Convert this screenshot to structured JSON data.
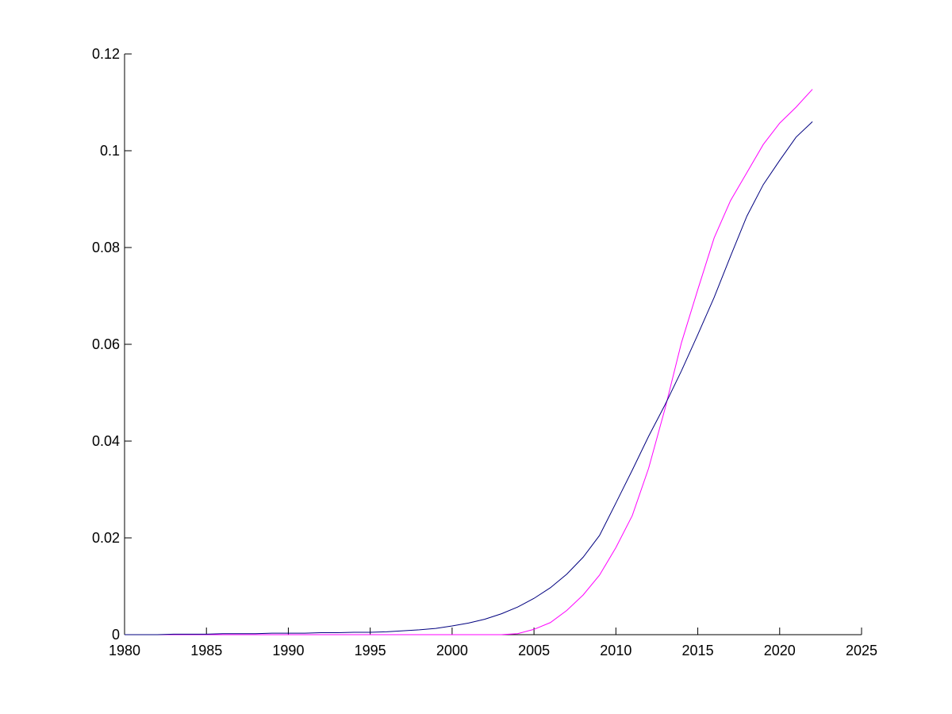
{
  "chart_data": {
    "type": "line",
    "x": [
      1980,
      1981,
      1982,
      1983,
      1984,
      1985,
      1986,
      1987,
      1988,
      1989,
      1990,
      1991,
      1992,
      1993,
      1994,
      1995,
      1996,
      1997,
      1998,
      1999,
      2000,
      2001,
      2002,
      2003,
      2004,
      2005,
      2006,
      2007,
      2008,
      2009,
      2010,
      2011,
      2012,
      2013,
      2014,
      2015,
      2016,
      2017,
      2018,
      2019,
      2020,
      2021,
      2022
    ],
    "series": [
      {
        "color": "#00007f",
        "values": [
          0,
          0,
          0,
          0.0001,
          0.0001,
          0.0001,
          0.0002,
          0.0002,
          0.0002,
          0.0003,
          0.0003,
          0.0003,
          0.0004,
          0.0004,
          0.0005,
          0.0005,
          0.0006,
          0.0008,
          0.001,
          0.0013,
          0.0018,
          0.0024,
          0.0032,
          0.0043,
          0.0057,
          0.0075,
          0.0097,
          0.0125,
          0.016,
          0.0205,
          0.0272,
          0.034,
          0.041,
          0.0475,
          0.0545,
          0.062,
          0.0697,
          0.0782,
          0.0865,
          0.093,
          0.098,
          0.1028,
          0.106
        ]
      },
      {
        "color": "#ff00ff",
        "values": [
          0,
          0,
          0,
          0,
          0,
          0,
          0,
          0,
          0,
          0,
          0,
          0,
          0,
          0,
          0,
          0,
          0,
          0,
          0,
          0,
          0,
          0,
          0,
          0,
          0.0002,
          0.0011,
          0.0025,
          0.005,
          0.0082,
          0.0123,
          0.018,
          0.0246,
          0.0344,
          0.0467,
          0.0603,
          0.0713,
          0.082,
          0.0897,
          0.0955,
          0.1013,
          0.1057,
          0.109,
          0.1127
        ]
      }
    ],
    "xlim": [
      1980,
      2025
    ],
    "xticks": [
      1980,
      1985,
      1990,
      1995,
      2000,
      2005,
      2010,
      2015,
      2020,
      2025
    ],
    "ylim": [
      0,
      0.12
    ],
    "yticks": [
      0,
      0.02,
      0.04,
      0.06,
      0.08,
      0.1,
      0.12
    ]
  }
}
